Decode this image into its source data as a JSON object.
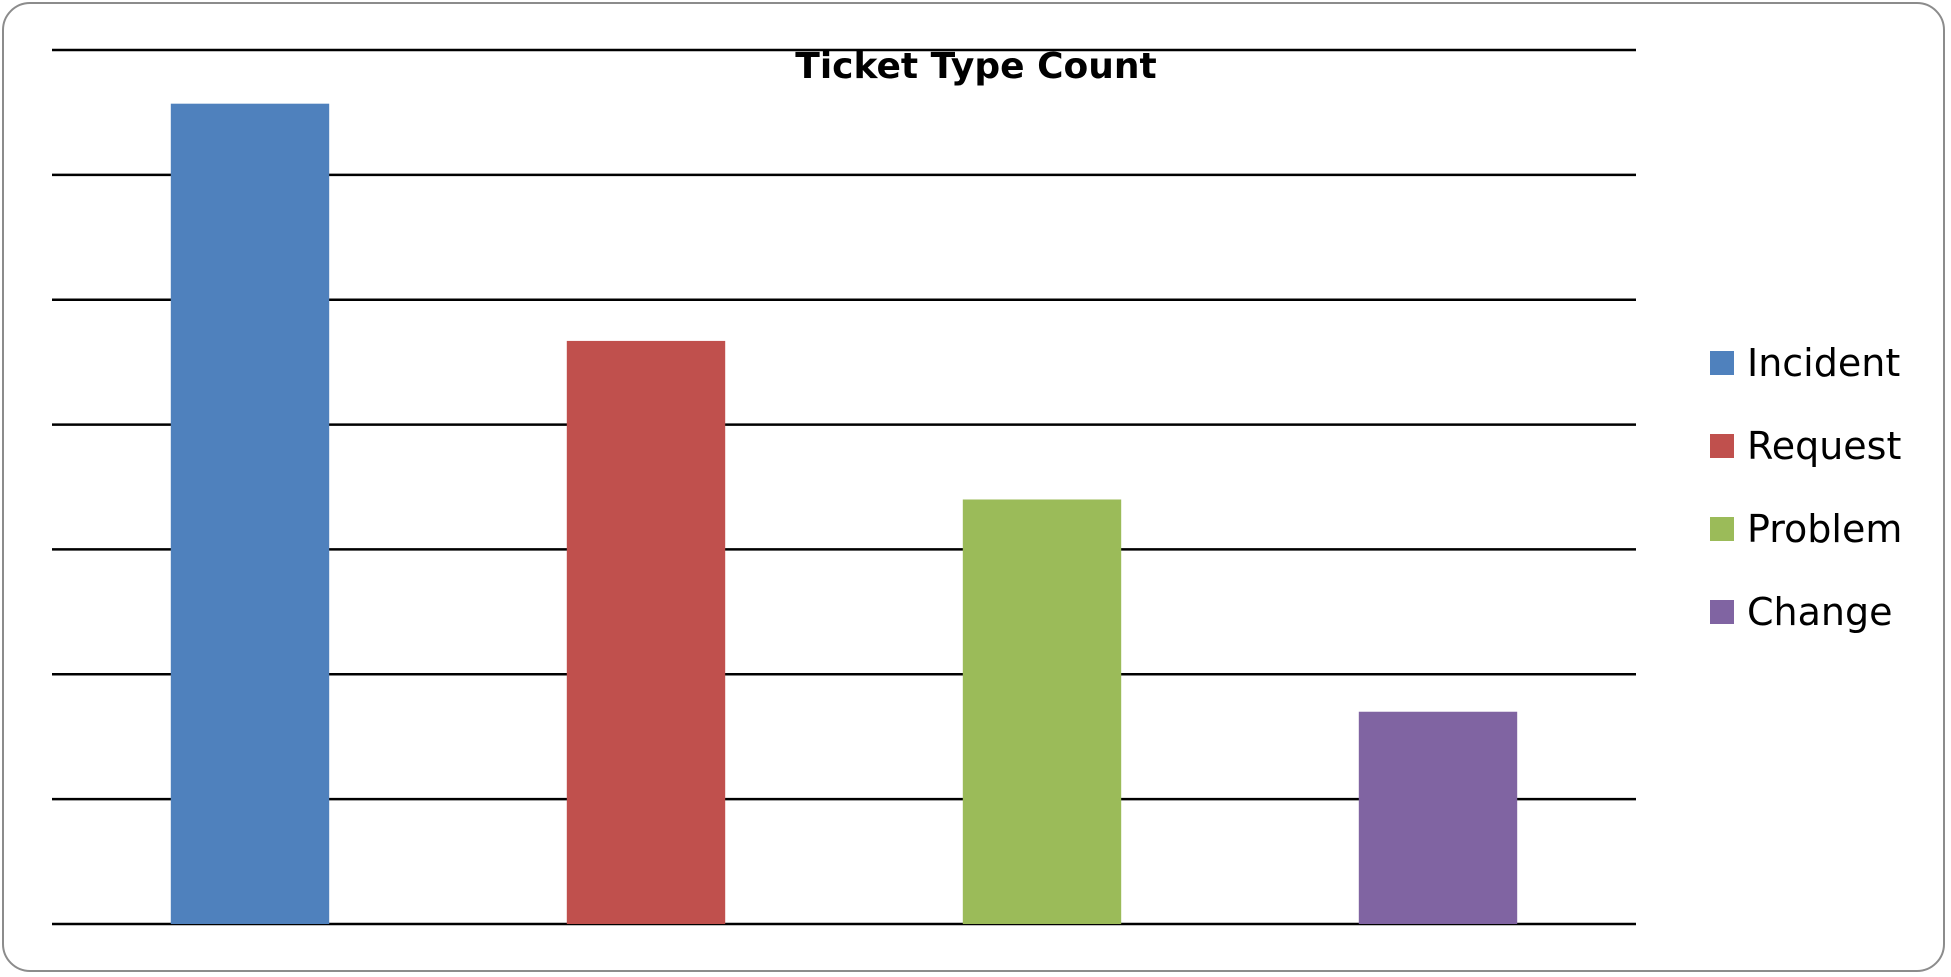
{
  "chart_data": {
    "type": "bar",
    "title": "Ticket Type Count",
    "xlabel": "",
    "ylabel": "",
    "ylim": [
      0,
      7
    ],
    "grid": true,
    "legend_position": "right",
    "categories": [
      "Incident",
      "Request",
      "Problem",
      "Change"
    ],
    "values": [
      6.57,
      4.67,
      3.4,
      1.7
    ],
    "colors": [
      "#4F81BD",
      "#C0504D",
      "#9BBB59",
      "#8064A2"
    ]
  }
}
